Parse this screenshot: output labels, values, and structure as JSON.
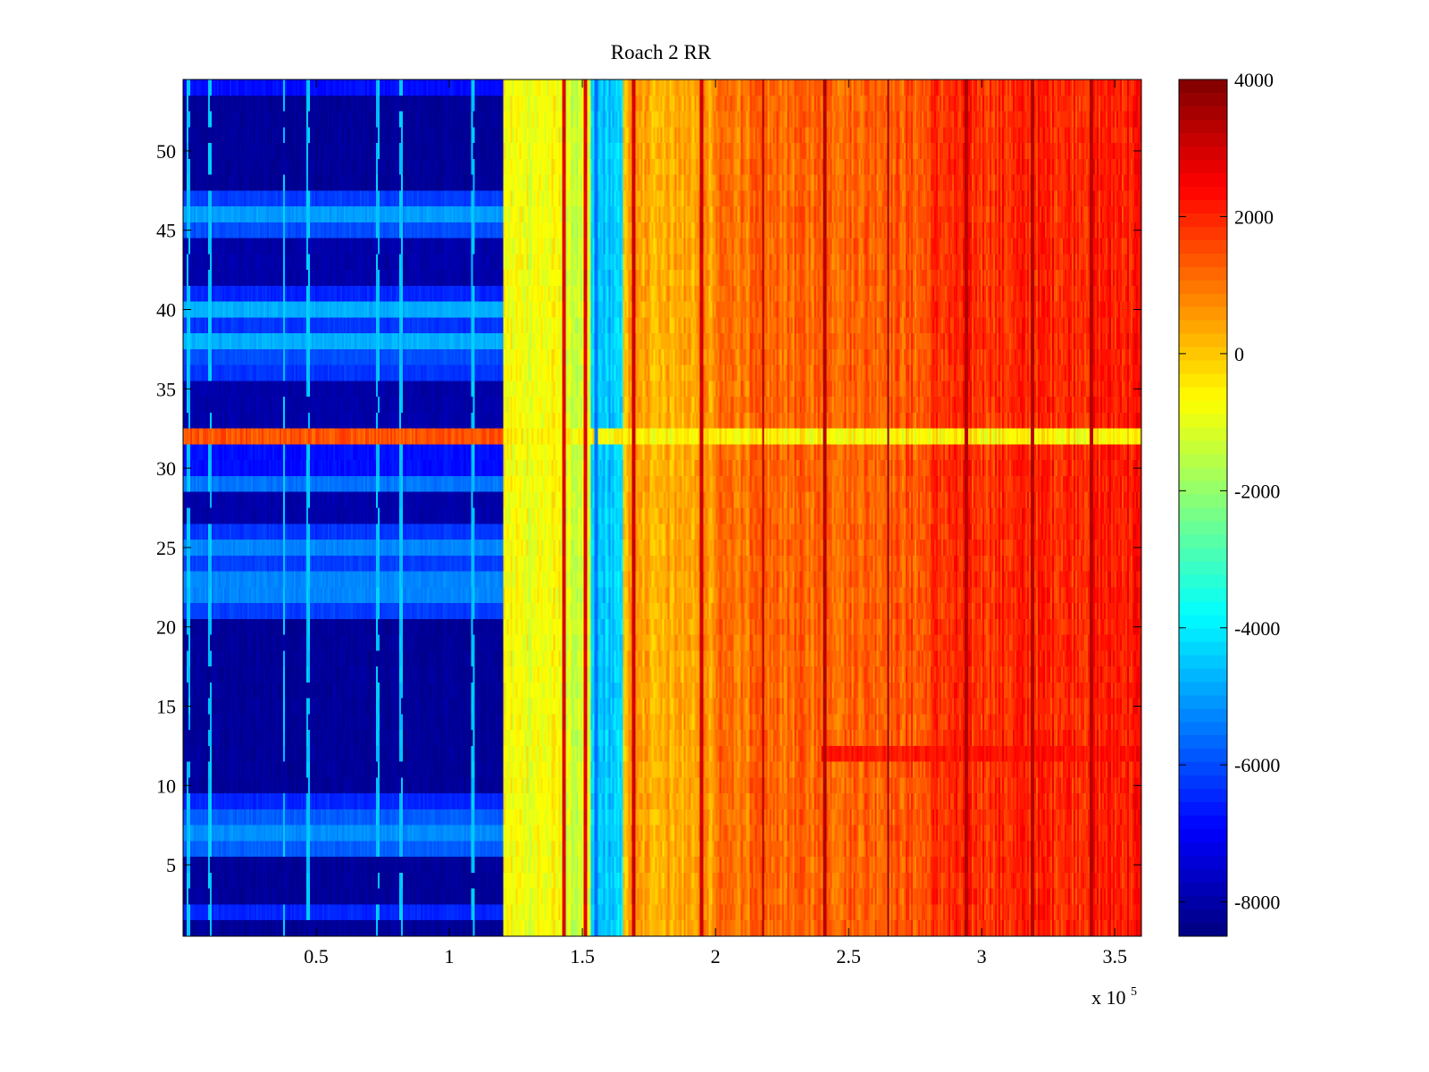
{
  "chart_data": {
    "type": "heatmap",
    "title": "Roach 2 RR",
    "xlabel": "",
    "ylabel": "",
    "x_exponent_label": "x 10",
    "x_exponent_power": "5",
    "xlim": [
      0,
      3.6
    ],
    "ylim": [
      0.5,
      54.5
    ],
    "xticks": [
      {
        "value": 0.5,
        "label": "0.5"
      },
      {
        "value": 1,
        "label": "1"
      },
      {
        "value": 1.5,
        "label": "1.5"
      },
      {
        "value": 2,
        "label": "2"
      },
      {
        "value": 2.5,
        "label": "2.5"
      },
      {
        "value": 3,
        "label": "3"
      },
      {
        "value": 3.5,
        "label": "3.5"
      }
    ],
    "yticks": [
      {
        "value": 5,
        "label": "5"
      },
      {
        "value": 10,
        "label": "10"
      },
      {
        "value": 15,
        "label": "15"
      },
      {
        "value": 20,
        "label": "20"
      },
      {
        "value": 25,
        "label": "25"
      },
      {
        "value": 30,
        "label": "30"
      },
      {
        "value": 35,
        "label": "35"
      },
      {
        "value": 40,
        "label": "40"
      },
      {
        "value": 45,
        "label": "45"
      },
      {
        "value": 50,
        "label": "50"
      }
    ],
    "colorbar": {
      "colormap": "jet",
      "clim": [
        -8500,
        4000
      ],
      "ticks": [
        {
          "value": 4000,
          "label": "4000"
        },
        {
          "value": 2000,
          "label": "2000"
        },
        {
          "value": 0,
          "label": "0"
        },
        {
          "value": -2000,
          "label": "-2000"
        },
        {
          "value": -4000,
          "label": "-4000"
        },
        {
          "value": -6000,
          "label": "-6000"
        },
        {
          "value": -8000,
          "label": "-8000"
        }
      ]
    },
    "rows": 54,
    "x_segments": [
      {
        "x_start": 0,
        "x_end": 1.2,
        "level": -8000
      },
      {
        "x_start": 1.2,
        "x_end": 1.43,
        "level": -800
      },
      {
        "x_start": 1.43,
        "x_end": 1.53,
        "level": -1300
      },
      {
        "x_start": 1.53,
        "x_end": 1.65,
        "level": -4500
      },
      {
        "x_start": 1.65,
        "x_end": 2.0,
        "level": 300
      },
      {
        "x_start": 2.0,
        "x_end": 2.8,
        "level": 900
      },
      {
        "x_start": 2.8,
        "x_end": 3.6,
        "level": 1300
      }
    ],
    "row_levels_low_region": [
      {
        "rows": [
          1
        ],
        "level": -8200
      },
      {
        "rows": [
          2
        ],
        "level": -6500
      },
      {
        "rows": [
          3,
          4,
          5
        ],
        "level": -8200
      },
      {
        "rows": [
          6,
          8
        ],
        "level": -5800
      },
      {
        "rows": [
          7
        ],
        "level": -5200
      },
      {
        "rows": [
          9
        ],
        "level": -6500
      },
      {
        "rows": [
          10,
          11,
          12,
          13,
          14,
          15,
          16,
          17,
          18,
          19,
          20
        ],
        "level": -8200
      },
      {
        "rows": [
          21,
          24
        ],
        "level": -6200
      },
      {
        "rows": [
          22,
          23,
          25
        ],
        "level": -5300
      },
      {
        "rows": [
          26
        ],
        "level": -6300
      },
      {
        "rows": [
          27,
          28
        ],
        "level": -8000
      },
      {
        "rows": [
          29
        ],
        "level": -5500
      },
      {
        "rows": [
          30,
          31
        ],
        "level": -6800
      },
      {
        "rows": [
          32
        ],
        "level": 1400
      },
      {
        "rows": [
          33,
          34,
          35
        ],
        "level": -8000
      },
      {
        "rows": [
          36,
          39
        ],
        "level": -6300
      },
      {
        "rows": [
          37
        ],
        "level": -6000
      },
      {
        "rows": [
          38,
          40
        ],
        "level": -4800
      },
      {
        "rows": [
          41
        ],
        "level": -6500
      },
      {
        "rows": [
          42,
          43,
          44
        ],
        "level": -8000
      },
      {
        "rows": [
          45
        ],
        "level": -6000
      },
      {
        "rows": [
          46
        ],
        "level": -5000
      },
      {
        "rows": [
          47
        ],
        "level": -6200
      },
      {
        "rows": [
          48,
          49,
          50,
          51,
          52,
          53
        ],
        "level": -8200
      },
      {
        "rows": [
          54
        ],
        "level": -6800
      }
    ],
    "row_32_high_region_level": -600,
    "vertical_stripes": [
      {
        "x": 0.02,
        "level": -4500
      },
      {
        "x": 0.1,
        "level": -4500
      },
      {
        "x": 0.38,
        "level": -4500
      },
      {
        "x": 0.47,
        "level": -4500
      },
      {
        "x": 0.73,
        "level": -4500
      },
      {
        "x": 0.82,
        "level": -4500
      },
      {
        "x": 1.09,
        "level": -4500
      },
      {
        "x": 1.43,
        "level": 2800
      },
      {
        "x": 1.51,
        "level": 2800
      },
      {
        "x": 1.55,
        "level": -5500
      },
      {
        "x": 1.69,
        "level": 3000
      },
      {
        "x": 1.95,
        "level": 3000
      },
      {
        "x": 2.18,
        "level": 3300
      },
      {
        "x": 2.41,
        "level": 3300
      },
      {
        "x": 2.65,
        "level": 3600
      },
      {
        "x": 2.94,
        "level": 3300
      },
      {
        "x": 3.19,
        "level": 3300
      },
      {
        "x": 3.41,
        "level": 3300
      }
    ],
    "horizontal_band": {
      "y_start": 11,
      "y_end": 12,
      "x_start": 2.4,
      "x_end": 3.6,
      "level": 2500
    }
  }
}
